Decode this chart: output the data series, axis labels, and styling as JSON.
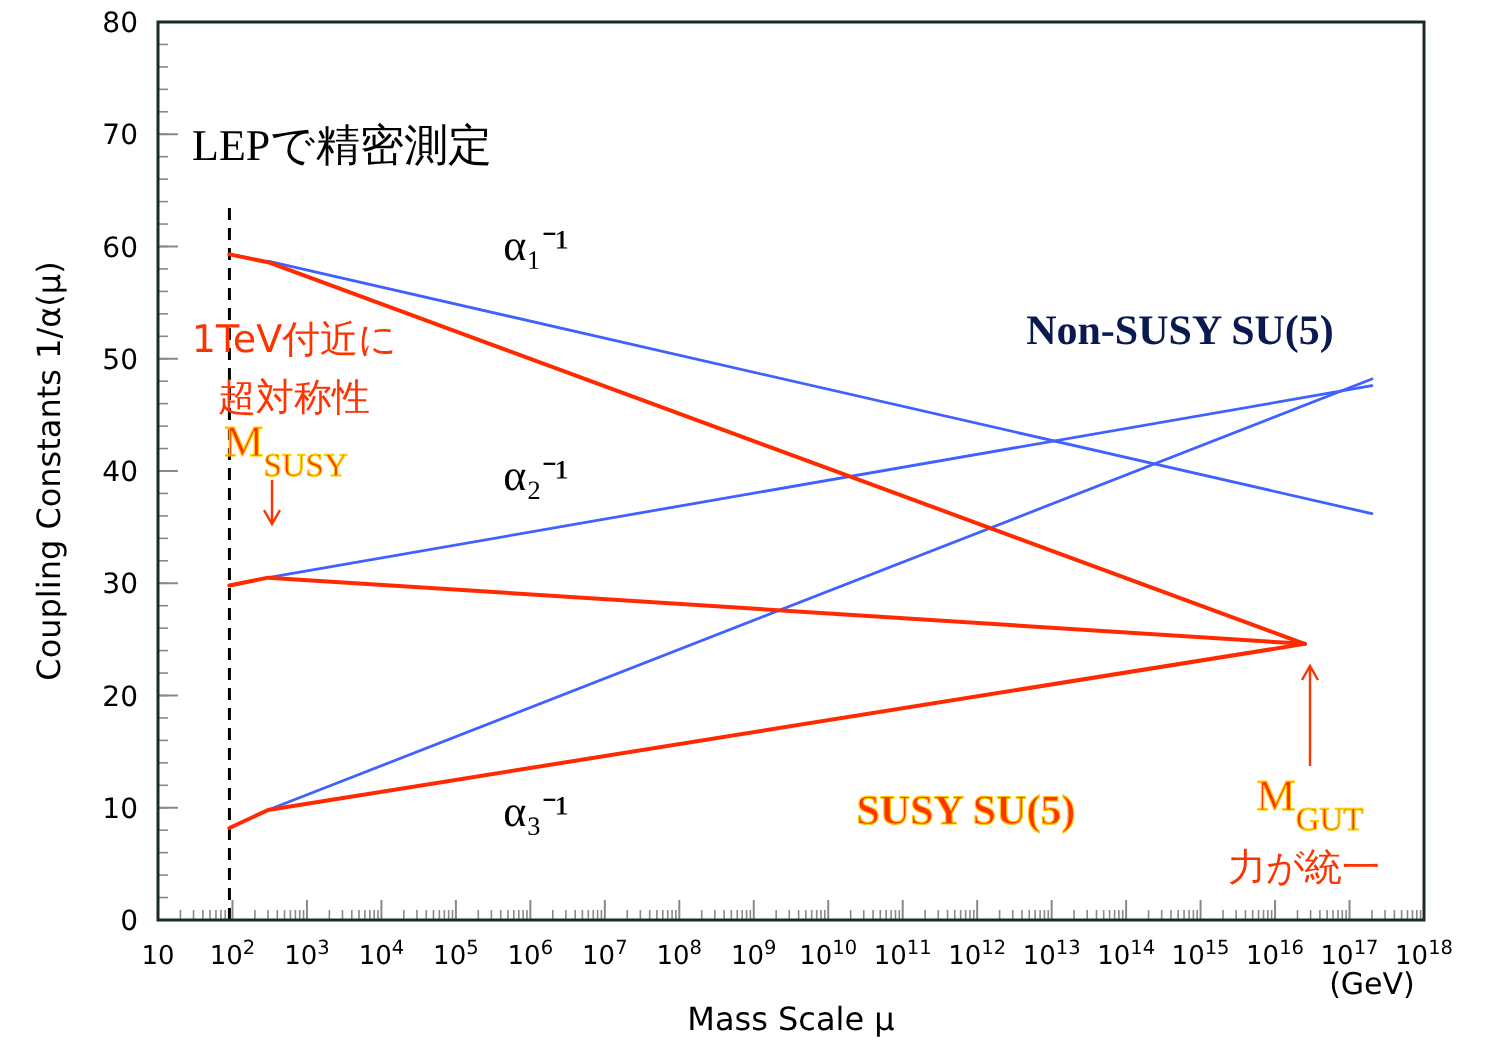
{
  "chart_data": {
    "type": "line",
    "xlabel": "Mass Scale μ",
    "ylabel": "Coupling Constants  1/α(μ)",
    "log": "x",
    "xlim": [
      10,
      1e+18
    ],
    "ylim": [
      0,
      80
    ],
    "xticks": [
      10,
      {
        "value": 100,
        "label": "10$^{2}$"
      },
      {
        "value": 1000.0,
        "label": "10$^{3}$"
      },
      {
        "value": 10000.0,
        "label": "10$^{4}$"
      },
      {
        "value": 100000.0,
        "label": "10$^{5}$"
      },
      {
        "value": 1000000.0,
        "label": "10$^{6}$"
      },
      {
        "value": 10000000.0,
        "label": "10$^{7}$"
      },
      {
        "value": 100000000.0,
        "label": "10$^{8}$"
      },
      {
        "value": 1000000000.0,
        "label": "10$^{9}$"
      },
      {
        "value": 10000000000.0,
        "label": "10$^{10}$"
      },
      {
        "value": 100000000000.0,
        "label": "10$^{11}$"
      },
      {
        "value": 1000000000000.0,
        "label": "10$^{12}$"
      },
      {
        "value": 10000000000000.0,
        "label": "10$^{13}$"
      },
      {
        "value": 100000000000000.0,
        "label": "10$^{14}$"
      },
      {
        "value": 1000000000000000.0,
        "label": "10$^{15}$"
      },
      {
        "value": 1e+16,
        "label": "10$^{16}$"
      },
      {
        "value": 1e+17,
        "label": "10$^{17}$"
      },
      {
        "value": 1e+18,
        "label": "10$^{18}$"
      }
    ],
    "yticks": [
      0,
      10,
      20,
      30,
      40,
      50,
      60,
      70,
      80
    ],
    "grid": false,
    "marker": "none",
    "line_style": "solid",
    "series": [
      {
        "color": "#4060ff",
        "x": [
          300,
          2e+17
        ],
        "values": [
          58.7,
          36.2
        ]
      },
      {
        "color": "#4060ff",
        "x": [
          300,
          2e+17
        ],
        "values": [
          30.5,
          47.6
        ]
      },
      {
        "color": "#4060ff",
        "x": [
          300,
          2e+17
        ],
        "values": [
          9.8,
          48.2
        ]
      },
      {
        "color": "#ff2a00",
        "x": [
          91,
          300,
          2.5e+16
        ],
        "values": [
          59.3,
          58.6,
          24.6
        ]
      },
      {
        "color": "#ff2a00",
        "x": [
          91,
          300,
          2.5e+16
        ],
        "values": [
          29.8,
          30.5,
          24.6
        ]
      },
      {
        "color": "#ff2a00",
        "x": [
          91,
          300,
          2.5e+16
        ],
        "values": [
          8.2,
          9.8,
          24.6
        ]
      }
    ],
    "ref_lines": [
      {
        "axis": "x",
        "value": 91,
        "color": "#000000",
        "line_style": "dashed"
      }
    ],
    "annotations": [
      "LEPで精密測定",
      "α₁⁻¹",
      "α₂⁻¹",
      "α₃⁻¹",
      "1TeV付近に",
      "超対称性",
      "M$_{SUSY}$",
      "Non-SUSY SU(5)",
      "SUSY SU(5)",
      "M$_{GUT}$",
      "力が統一",
      "(GeV)"
    ]
  }
}
